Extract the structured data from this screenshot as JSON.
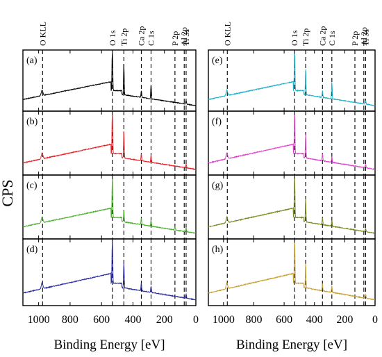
{
  "figure": {
    "ylabel": "CPS",
    "panels_common": {
      "xlabel": "Binding Energy [eV]",
      "xlim": [
        1100,
        0
      ],
      "xticks": [
        1000,
        800,
        600,
        400,
        200,
        0
      ],
      "peaks": [
        {
          "label": "O KLL",
          "energy": 975
        },
        {
          "label": "O 1s",
          "energy": 531
        },
        {
          "label": "Ti 2p",
          "energy": 458
        },
        {
          "label": "Ca 2p",
          "energy": 347
        },
        {
          "label": "C 1s",
          "energy": 285
        },
        {
          "label": "P 2p",
          "energy": 133
        },
        {
          "label": "Al 2p",
          "energy": 74
        },
        {
          "label": "Ti 3s",
          "energy": 62
        }
      ]
    }
  },
  "chart_data": [
    {
      "type": "line",
      "panel": "(a)",
      "column": 0,
      "row": 0,
      "color": "#000000",
      "xlabel": "",
      "peaks_present": [
        "O KLL",
        "O 1s",
        "Ti 2p",
        "Ca 2p",
        "C 1s",
        "Ti 3s"
      ]
    },
    {
      "type": "line",
      "panel": "(b)",
      "column": 0,
      "row": 1,
      "color": "#e8242b",
      "xlabel": "",
      "peaks_present": [
        "O KLL",
        "O 1s",
        "Ti 2p",
        "Ca 2p",
        "C 1s",
        "Ti 3s"
      ]
    },
    {
      "type": "line",
      "panel": "(c)",
      "column": 0,
      "row": 2,
      "color": "#4caf2e",
      "xlabel": "",
      "peaks_present": [
        "O KLL",
        "O 1s",
        "Ti 2p",
        "Ca 2p",
        "C 1s",
        "P 2p",
        "Ti 3s"
      ]
    },
    {
      "type": "line",
      "panel": "(d)",
      "column": 0,
      "row": 3,
      "color": "#2a2aa0",
      "xlabel": "Binding Energy [eV]",
      "peaks_present": [
        "O KLL",
        "O 1s",
        "Ti 2p",
        "Ca 2p",
        "C 1s",
        "Ti 3s"
      ]
    },
    {
      "type": "line",
      "panel": "(e)",
      "column": 1,
      "row": 0,
      "color": "#1ab0c8",
      "xlabel": "",
      "peaks_present": [
        "O KLL",
        "O 1s",
        "Ti 2p",
        "Ca 2p",
        "C 1s",
        "Ti 3s"
      ]
    },
    {
      "type": "line",
      "panel": "(f)",
      "column": 1,
      "row": 1,
      "color": "#e040c8",
      "xlabel": "",
      "peaks_present": [
        "O KLL",
        "O 1s",
        "Ti 2p",
        "Ca 2p",
        "C 1s",
        "Ti 3s"
      ]
    },
    {
      "type": "line",
      "panel": "(g)",
      "column": 1,
      "row": 2,
      "color": "#7a8a20",
      "xlabel": "",
      "peaks_present": [
        "O KLL",
        "O 1s",
        "Ti 2p",
        "Ca 2p",
        "C 1s",
        "Ti 3s"
      ]
    },
    {
      "type": "line",
      "panel": "(h)",
      "column": 1,
      "row": 3,
      "color": "#c8a030",
      "xlabel": "Binding Energy [eV]",
      "peaks_present": [
        "O KLL",
        "O 1s",
        "Ti 2p",
        "Ca 2p",
        "C 1s",
        "Ti 3s"
      ]
    }
  ]
}
